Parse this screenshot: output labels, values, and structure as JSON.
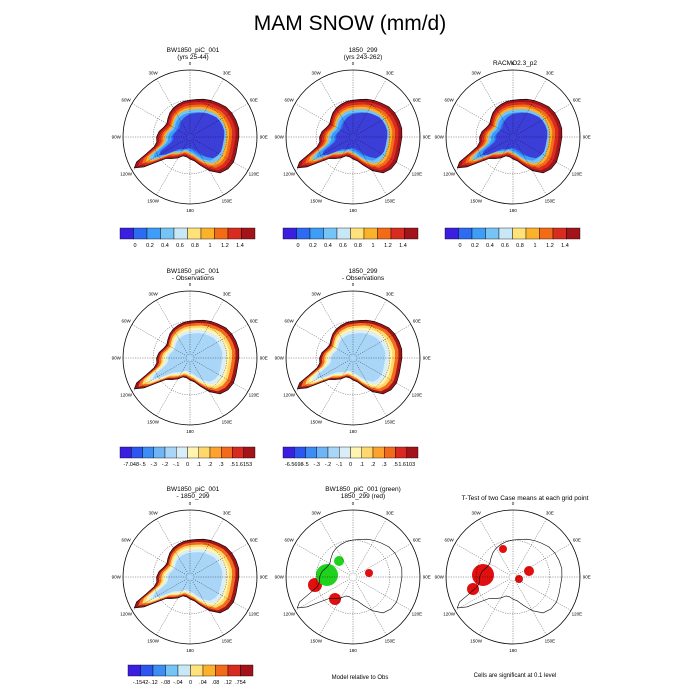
{
  "title": "MAM SNOW (mm/d)",
  "longitude_labels": [
    "0",
    "30E",
    "60E",
    "90E",
    "120E",
    "150E",
    "180",
    "150W",
    "120W",
    "90W",
    "60W",
    "30W"
  ],
  "panels": [
    {
      "id": "p1",
      "title_lines": [
        "BW1850_piC_001",
        "(yrs 25-44)"
      ],
      "type": "field",
      "palette": "abs"
    },
    {
      "id": "p2",
      "title_lines": [
        "1850_299",
        "(yrs 243-262)"
      ],
      "type": "field",
      "palette": "abs"
    },
    {
      "id": "p3",
      "title_lines": [
        "RACMO2.3_p2"
      ],
      "type": "field",
      "palette": "abs"
    },
    {
      "id": "p4",
      "title_lines": [
        "BW1850_piC_001",
        "- Observations"
      ],
      "type": "field",
      "palette": "diff"
    },
    {
      "id": "p5",
      "title_lines": [
        "1850_299",
        "- Observations"
      ],
      "type": "field",
      "palette": "diff"
    },
    {
      "id": "p6",
      "title_lines": [
        "BW1850_piC_001",
        "- 1850_299"
      ],
      "type": "field",
      "palette": "diff"
    },
    {
      "id": "p7",
      "title_lines": [
        "BW1850_piC_001 (green)",
        "1850_299 (red)"
      ],
      "type": "mask"
    },
    {
      "id": "p8",
      "title_lines": [
        "T-Test of two Case means at each grid point"
      ],
      "type": "mask"
    }
  ],
  "colorbars": [
    {
      "id": "cb1",
      "labels": [
        "0",
        "0.2",
        "0.4",
        "0.6",
        "0.8",
        "1",
        "1.2",
        "1.4"
      ],
      "colors": [
        "#3b1fe0",
        "#2d6cf2",
        "#3d9df7",
        "#76c3f5",
        "#c8e8f7",
        "#ffe27a",
        "#fcb12a",
        "#f46b16",
        "#d92c20",
        "#a3141a"
      ]
    },
    {
      "id": "cb2",
      "labels": [
        "0",
        "0.2",
        "0.4",
        "0.6",
        "0.8",
        "1",
        "1.2",
        "1.4"
      ],
      "colors": [
        "#3b1fe0",
        "#2d6cf2",
        "#3d9df7",
        "#76c3f5",
        "#c8e8f7",
        "#ffe27a",
        "#fcb12a",
        "#f46b16",
        "#d92c20",
        "#a3141a"
      ]
    },
    {
      "id": "cb3",
      "labels": [
        "0",
        "0.2",
        "0.4",
        "0.6",
        "0.8",
        "1",
        "1.2",
        "1.4"
      ],
      "colors": [
        "#3b1fe0",
        "#2d6cf2",
        "#3d9df7",
        "#76c3f5",
        "#c8e8f7",
        "#ffe27a",
        "#fcb12a",
        "#f46b16",
        "#d92c20",
        "#a3141a"
      ]
    },
    {
      "id": "cb4",
      "labels": [
        "-7.048",
        "-.5",
        "-.3",
        "-.2",
        "-.1",
        "0",
        ".1",
        ".2",
        ".3",
        ".5",
        "1.6153"
      ],
      "colors": [
        "#3b1fe0",
        "#2d55f0",
        "#3d8df5",
        "#6fb4f5",
        "#a9d6f7",
        "#d9eef8",
        "#fff5b0",
        "#ffd76a",
        "#fca22d",
        "#f26a1b",
        "#d82a20",
        "#a3141a"
      ]
    },
    {
      "id": "cb5",
      "labels": [
        "-6.5698",
        "-.5",
        "-.3",
        "-.2",
        "-.1",
        "0",
        ".1",
        ".2",
        ".3",
        ".5",
        "1.6103"
      ],
      "colors": [
        "#3b1fe0",
        "#2d55f0",
        "#3d8df5",
        "#6fb4f5",
        "#a9d6f7",
        "#d9eef8",
        "#fff5b0",
        "#ffd76a",
        "#fca22d",
        "#f26a1b",
        "#d82a20",
        "#a3141a"
      ]
    },
    {
      "id": "cb6",
      "labels": [
        "-.1542",
        "-.12",
        "-.08",
        "-.04",
        "0",
        ".04",
        ".08",
        ".12",
        ".754"
      ],
      "colors": [
        "#3b1fe0",
        "#2d55f0",
        "#3d8df5",
        "#76c3f5",
        "#c8e8f7",
        "#ffe27a",
        "#fcb12a",
        "#f26a1b",
        "#d82a20",
        "#a3141a"
      ]
    }
  ],
  "footnotes": {
    "p7": "Model relative to Obs",
    "p8": "Cells are significant at 0.1 level"
  }
}
